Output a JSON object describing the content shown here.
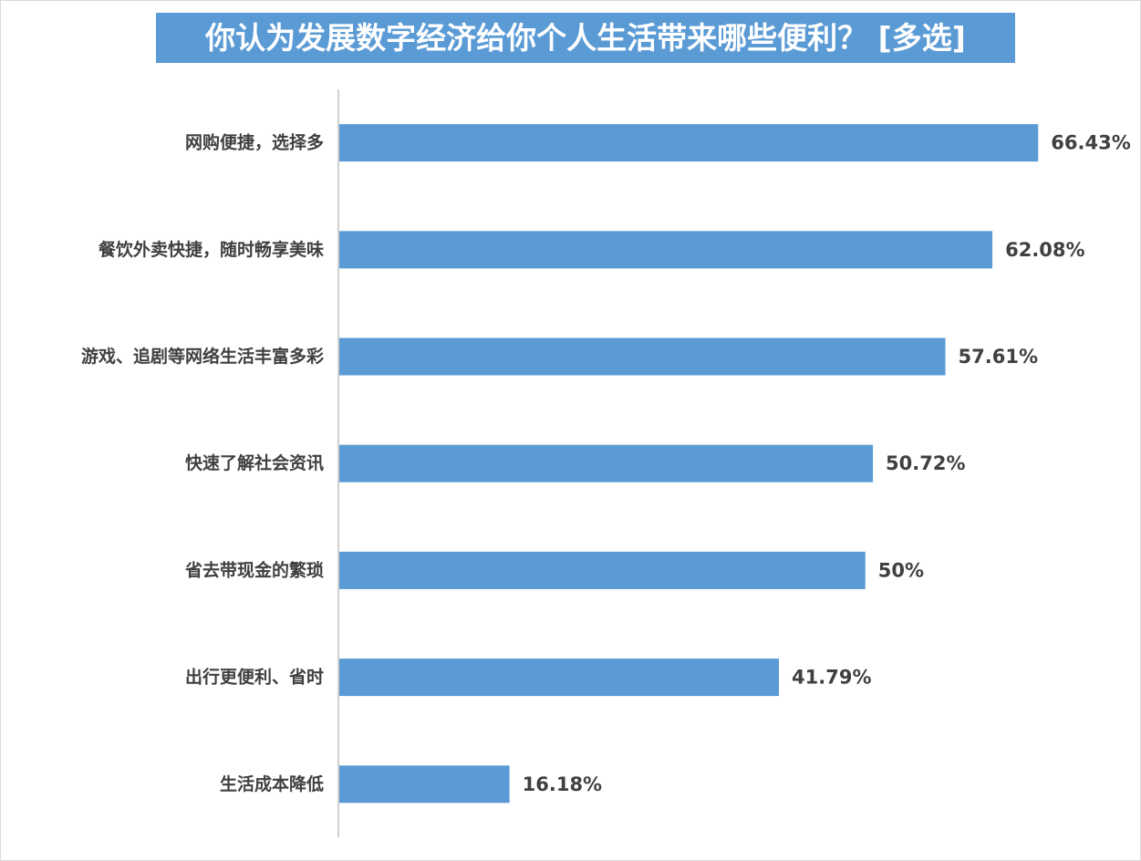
{
  "chart_data": {
    "type": "bar",
    "orientation": "horizontal",
    "title": "你认为发展数字经济给你个人生活带来哪些便利？ [多选]",
    "categories": [
      "网购便捷，选择多",
      "餐饮外卖快捷，随时畅享美味",
      "游戏、追剧等网络生活丰富多彩",
      "快速了解社会资讯",
      "省去带现金的繁琐",
      "出行更便利、省时",
      "生活成本降低"
    ],
    "values": [
      66.43,
      62.08,
      57.61,
      50.72,
      50,
      41.79,
      16.18
    ],
    "value_labels": [
      "66.43%",
      "62.08%",
      "57.61%",
      "50.72%",
      "50%",
      "41.79%",
      "16.18%"
    ],
    "xlim": [
      0,
      100
    ],
    "grid": false,
    "legend": "none",
    "bar_color": "#5b9bd5",
    "title_background": "#5b9bd5"
  }
}
